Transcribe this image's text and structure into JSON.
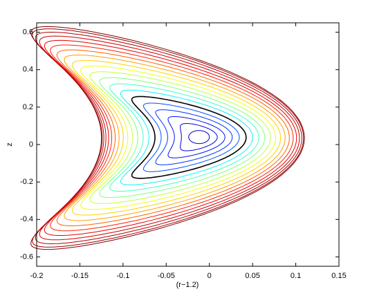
{
  "chart_data": {
    "type": "contour",
    "xlabel": "(r−1.2)",
    "ylabel": "z",
    "xlim": [
      -0.2,
      0.15
    ],
    "xticks": [
      -0.2,
      -0.15,
      -0.1,
      -0.05,
      0,
      0.05,
      0.1,
      0.15
    ],
    "ylim": [
      -0.65,
      0.65
    ],
    "yticks": [
      -0.6,
      -0.4,
      -0.2,
      0,
      0.2,
      0.4,
      0.6
    ],
    "contour_colors": [
      "#800000",
      "#990000",
      "#b30000",
      "#cc0000",
      "#e60000",
      "#ff2000",
      "#ff6000",
      "#ffa000",
      "#ffd000",
      "#f0ff10",
      "#c0ff40",
      "#80ff80",
      "#40ffc0",
      "#10f0ff",
      "#000000",
      "#0050ff",
      "#0030ff",
      "#0010f0",
      "#0000e0",
      "#0000d0"
    ]
  }
}
